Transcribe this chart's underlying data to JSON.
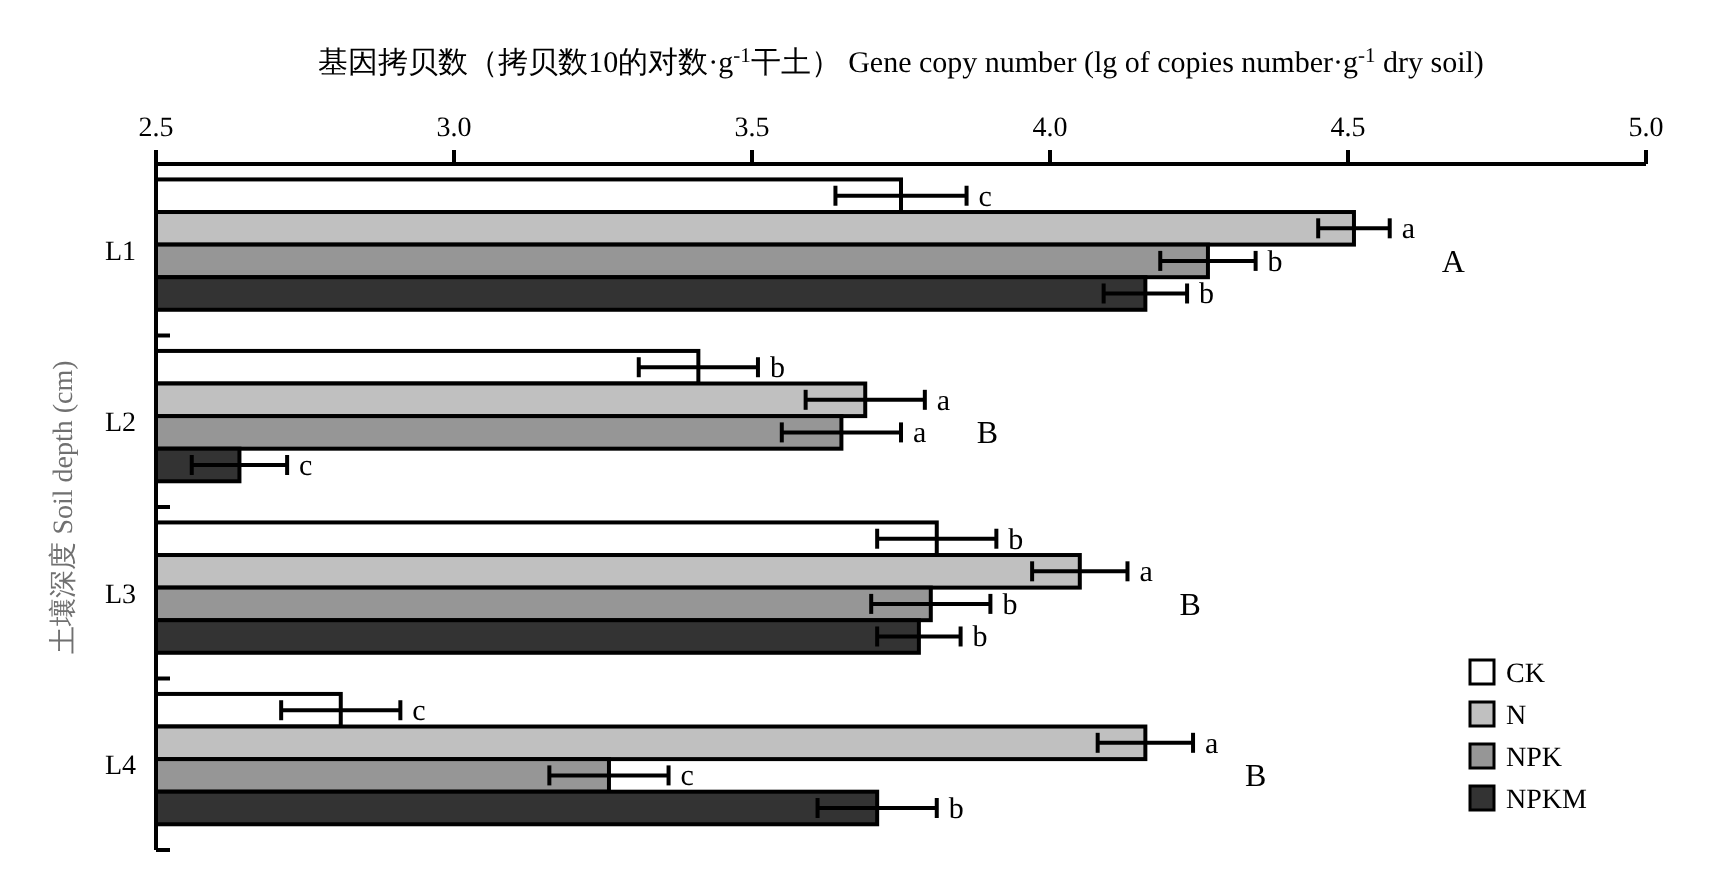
{
  "chart_data": {
    "type": "bar",
    "orientation": "horizontal",
    "xlabel": "基因拷贝数（拷贝数10的对数·g$^{-1}$干土） Gene copy number (lg of copies number·g$^{-1}$ dry soil)",
    "ylabel": "土壤深度 Soil depth (cm)",
    "categories": [
      "L1",
      "L2",
      "L3",
      "L4"
    ],
    "xlim": [
      2.5,
      5.0
    ],
    "xticks": [
      2.5,
      {
        "value": 3,
        "label": "3.0"
      },
      3.5,
      {
        "value": 4,
        "label": "4.0"
      },
      4.5,
      {
        "value": 5,
        "label": "5.0"
      }
    ],
    "series": [
      {
        "name": "CK",
        "color": "#ffffff",
        "values": [
          3.75,
          3.41,
          3.81,
          2.81
        ],
        "errors": [
          0.11,
          0.1,
          0.1,
          0.1
        ],
        "value_labels": [
          "c",
          "b",
          "b",
          "c"
        ]
      },
      {
        "name": "N",
        "color": "#c0c0c0",
        "values": [
          4.51,
          3.69,
          4.05,
          4.16
        ],
        "errors": [
          0.06,
          0.1,
          0.08,
          0.08
        ],
        "value_labels": [
          "a",
          "a",
          "a",
          "a"
        ]
      },
      {
        "name": "NPK",
        "color": "#969696",
        "values": [
          4.265,
          3.65,
          3.8,
          3.26
        ],
        "errors": [
          0.08,
          0.1,
          0.1,
          0.1
        ],
        "value_labels": [
          "b",
          "a",
          "b",
          "c"
        ]
      },
      {
        "name": "NPKM",
        "color": "#333333",
        "values": [
          4.16,
          2.64,
          3.78,
          3.71
        ],
        "errors": [
          0.07,
          0.08,
          0.07,
          0.1
        ],
        "value_labels": [
          "b",
          "c",
          "b",
          "b"
        ]
      }
    ],
    "annotations": [
      "A",
      "B",
      "B",
      "B"
    ],
    "legend": "bottom right"
  }
}
